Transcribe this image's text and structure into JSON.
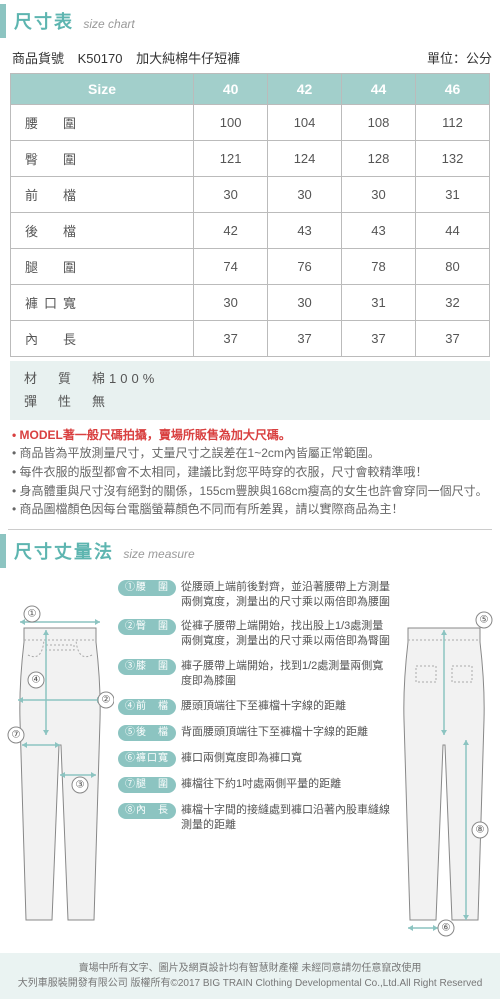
{
  "header1": {
    "zh": "尺寸表",
    "en": "size chart"
  },
  "product": {
    "label": "商品貨號",
    "code": "K50170",
    "name": "加大純棉牛仔短褲",
    "unit": "單位：公分"
  },
  "table": {
    "head": [
      "Size",
      "40",
      "42",
      "44",
      "46"
    ],
    "rows": [
      {
        "label": "腰　圍",
        "v": [
          "100",
          "104",
          "108",
          "112"
        ]
      },
      {
        "label": "臀　圍",
        "v": [
          "121",
          "124",
          "128",
          "132"
        ]
      },
      {
        "label": "前　檔",
        "v": [
          "30",
          "30",
          "30",
          "31"
        ]
      },
      {
        "label": "後　檔",
        "v": [
          "42",
          "43",
          "43",
          "44"
        ]
      },
      {
        "label": "腿　圍",
        "v": [
          "74",
          "76",
          "78",
          "80"
        ]
      },
      {
        "label": "褲口寬",
        "v": [
          "30",
          "30",
          "31",
          "32"
        ]
      },
      {
        "label": "內　長",
        "v": [
          "37",
          "37",
          "37",
          "37"
        ]
      }
    ]
  },
  "meta": {
    "line1": "材　質　棉100%",
    "line2": "彈　性　無"
  },
  "notes": {
    "red": "• MODEL著一般尺碼拍攝，賣場所販售為加大尺碼。",
    "items": [
      "• 商品皆為平放測量尺寸，丈量尺寸之誤差在1~2cm內皆屬正常範圍。",
      "• 每件衣服的版型都會不太相同，建議比對您平時穿的衣服，尺寸會較精準哦！",
      "• 身高體重與尺寸沒有絕對的關係，155cm豐腴與168cm瘦高的女生也許會穿同一個尺寸。",
      "• 商品圖檔顏色因每台電腦螢幕顏色不同而有所差異，請以實際商品為主！"
    ]
  },
  "header2": {
    "zh": "尺寸丈量法",
    "en": "size measure"
  },
  "measures": [
    {
      "badge": "①腰　圍",
      "text": "從腰頭上端前後對齊，並沿著腰帶上方測量兩側寬度，測量出的尺寸乘以兩倍即為腰圍"
    },
    {
      "badge": "②臀　圍",
      "text": "從褲子腰帶上端開始，找出股上1/3處測量兩側寬度，測量出的尺寸乘以兩倍即為臀圍"
    },
    {
      "badge": "③膝　圍",
      "text": "褲子腰帶上端開始，找到1/2處測量兩側寬度即為膝圍"
    },
    {
      "badge": "④前　檔",
      "text": "腰頭頂端往下至褲檔十字線的距離"
    },
    {
      "badge": "⑤後　檔",
      "text": "背面腰頭頂端往下至褲檔十字線的距離"
    },
    {
      "badge": "⑥褲口寬",
      "text": "褲口兩側寬度即為褲口寬"
    },
    {
      "badge": "⑦腿　圍",
      "text": "褲檔往下約1吋處兩側平量的距離"
    },
    {
      "badge": "⑧內　長",
      "text": "褲檔十字間的接縫處到褲口沿著內股車縫線測量的距離"
    }
  ],
  "footer": {
    "line1": "賣場中所有文字、圖片及網頁設計均有智慧財產權 未經同意請勿任意竄改使用",
    "line2": "大列車服裝開發有限公司 版權所有©2017 BIG TRAIN Clothing Developmental Co.,Ltd.All Right Reserved"
  }
}
